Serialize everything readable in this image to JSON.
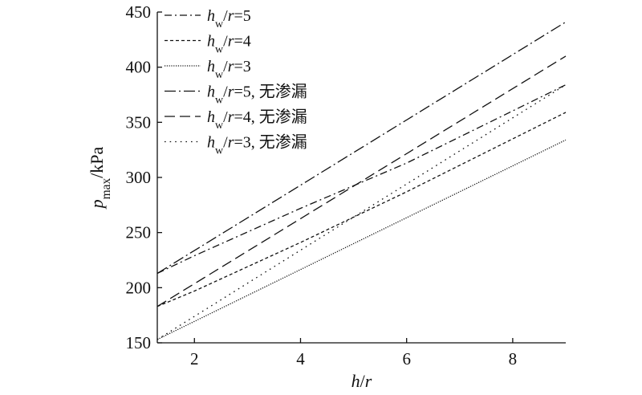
{
  "chart_data": {
    "type": "line",
    "xlabel": "h/r",
    "ylabel": "p_max/kPa",
    "xlim": [
      1.3,
      9.0
    ],
    "ylim": [
      150,
      450
    ],
    "xticks": [
      2,
      4,
      6,
      8
    ],
    "yticks": [
      150,
      200,
      250,
      300,
      350,
      400,
      450
    ],
    "grid": false,
    "legend_position": "top-left",
    "series": [
      {
        "name": "h_w/r=5",
        "style": "dashdot",
        "x": [
          1.3,
          2,
          4,
          6,
          9
        ],
        "y": [
          213,
          229,
          272,
          313,
          384
        ]
      },
      {
        "name": "h_w/r=4",
        "style": "dashed-short",
        "x": [
          1.3,
          2,
          4,
          6,
          9
        ],
        "y": [
          183,
          197,
          241,
          287,
          359
        ]
      },
      {
        "name": "h_w/r=3",
        "style": "dotted-fine",
        "x": [
          1.3,
          9
        ],
        "y": [
          153,
          334
        ]
      },
      {
        "name": "h_w/r=5, 无渗漏",
        "style": "dashdot-long",
        "x": [
          1.3,
          9
        ],
        "y": [
          213,
          441
        ]
      },
      {
        "name": "h_w/r=4, 无渗漏",
        "style": "dashed-long",
        "x": [
          1.3,
          9
        ],
        "y": [
          183,
          410
        ]
      },
      {
        "name": "h_w/r=3, 无渗漏",
        "style": "dotted-sparse",
        "x": [
          1.3,
          9
        ],
        "y": [
          153,
          384
        ]
      }
    ]
  }
}
